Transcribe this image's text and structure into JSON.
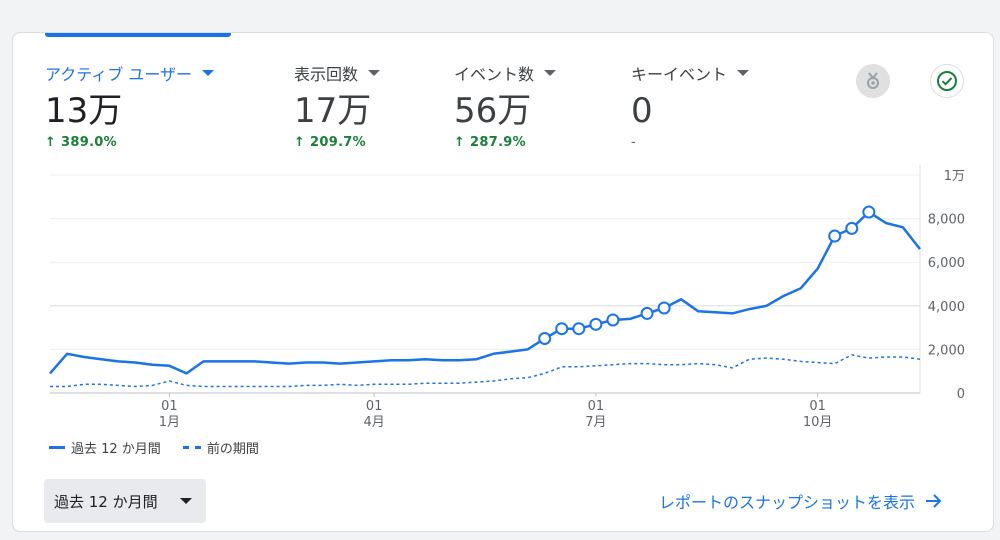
{
  "metrics": [
    {
      "label": "アクティブ ユーザー",
      "value": "13万",
      "change": "389.0%",
      "active": true
    },
    {
      "label": "表示回数",
      "value": "17万",
      "change": "209.7%"
    },
    {
      "label": "イベント数",
      "value": "56万",
      "change": "287.9%"
    },
    {
      "label": "キーイベント",
      "value": "0",
      "change": "-"
    }
  ],
  "icons": {
    "insights": "insights-icon",
    "check": "check-circle-icon"
  },
  "colors": {
    "accent": "#1a73e8",
    "positive": "#188038",
    "grid": "#e0e0e0"
  },
  "legend": {
    "current": "過去 12 か月間",
    "previous": "前の期間"
  },
  "period_select": {
    "value": "過去 12 か月間"
  },
  "snapshot_link": {
    "label": "レポートのスナップショットを表示"
  },
  "chart_data": {
    "type": "line",
    "y_tick_labels": [
      "0",
      "2,000",
      "4,000",
      "6,000",
      "8,000",
      "1万"
    ],
    "ylim": [
      0,
      10000
    ],
    "x_tick_labels": [
      {
        "day": "01",
        "month": "1月",
        "index": 7
      },
      {
        "day": "01",
        "month": "4月",
        "index": 19
      },
      {
        "day": "01",
        "month": "7月",
        "index": 32
      },
      {
        "day": "01",
        "month": "10月",
        "index": 45
      }
    ],
    "series": [
      {
        "name": "過去 12 か月間",
        "style": "solid",
        "values": [
          900,
          1800,
          1650,
          1550,
          1450,
          1400,
          1300,
          1250,
          900,
          1450,
          1450,
          1450,
          1450,
          1400,
          1350,
          1400,
          1400,
          1350,
          1400,
          1450,
          1500,
          1500,
          1550,
          1500,
          1500,
          1550,
          1800,
          1900,
          2000,
          2500,
          2950,
          2950,
          3150,
          3350,
          3400,
          3650,
          3900,
          4300,
          3750,
          3700,
          3650,
          3850,
          4000,
          4450,
          4800,
          5700,
          7200,
          7550,
          8300,
          7800,
          7600,
          6600
        ],
        "markers": [
          29,
          30,
          31,
          32,
          33,
          35,
          36,
          46,
          47,
          48
        ]
      },
      {
        "name": "前の期間",
        "style": "dashed",
        "values": [
          300,
          300,
          400,
          400,
          350,
          300,
          350,
          550,
          350,
          300,
          300,
          300,
          300,
          300,
          300,
          350,
          350,
          400,
          350,
          400,
          400,
          400,
          450,
          450,
          450,
          500,
          550,
          650,
          700,
          900,
          1200,
          1200,
          1250,
          1300,
          1350,
          1350,
          1300,
          1300,
          1350,
          1300,
          1150,
          1550,
          1600,
          1550,
          1450,
          1400,
          1350,
          1750,
          1600,
          1650,
          1650,
          1550
        ]
      }
    ]
  }
}
